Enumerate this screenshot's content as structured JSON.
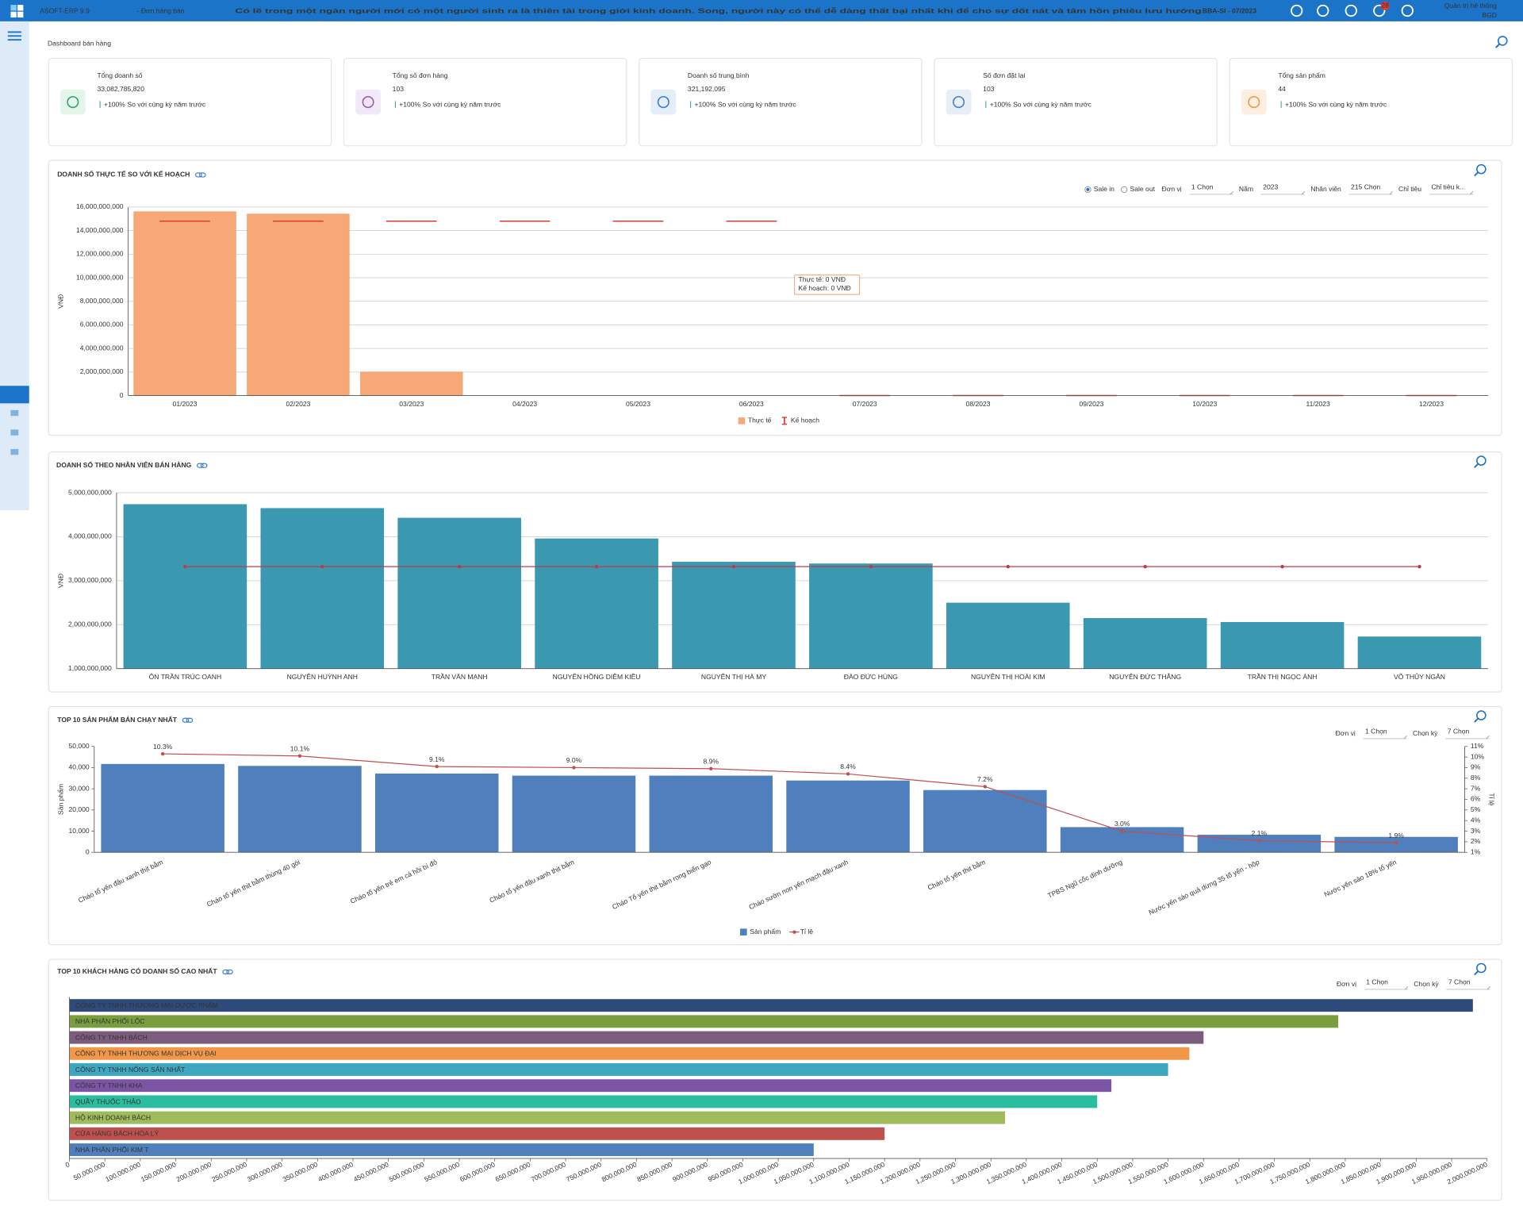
{
  "header": {
    "app": "ASOFT-ERP 9.9",
    "module": "- Đơn hàng bán",
    "marquee": "Có lẽ trong một ngàn người mới có một người sinh ra là thiên tài trong giới kinh doanh. Song, người này có thể dễ dàng thất bại nhất khi để cho sự dốt nát và tâm hồn phiêu lưu hướng",
    "period": "BBA-SI - 07/2023",
    "notifications": "28",
    "user": "Quản trị hệ thống",
    "role": "BGD"
  },
  "page_title": "Dashboard bán hàng",
  "kpis": [
    {
      "label": "Tổng doanh số",
      "value": "33,082,785,820",
      "change": "+100%",
      "note": "So với cùng kỳ năm trước"
    },
    {
      "label": "Tổng số đơn hàng",
      "value": "103",
      "change": "+100%",
      "note": "So với cùng kỳ năm trước"
    },
    {
      "label": "Doanh số trung bình",
      "value": "321,192,095",
      "change": "+100%",
      "note": "So với cùng kỳ năm trước"
    },
    {
      "label": "Số đơn đặt lại",
      "value": "103",
      "change": "+100%",
      "note": "So với cùng kỳ năm trước"
    },
    {
      "label": "Tổng sản phẩm",
      "value": "44",
      "change": "+100%",
      "note": "So với cùng kỳ năm trước"
    }
  ],
  "chart_data": [
    {
      "type": "bar",
      "title": "DOANH SỐ THỰC TẾ SO VỚI KẾ HOẠCH",
      "options": [
        {
          "label": "Sale in",
          "checked": true
        },
        {
          "label": "Sale out",
          "checked": false
        }
      ],
      "filters": [
        {
          "label": "Đơn vị",
          "value": "1 Chọn"
        },
        {
          "label": "Năm",
          "value": "2023"
        },
        {
          "label": "Nhân viên",
          "value": "215 Chọn"
        },
        {
          "label": "Chỉ tiêu",
          "value": "Chỉ tiêu k..."
        }
      ],
      "ylabel": "VNĐ",
      "categories": [
        "01/2023",
        "02/2023",
        "03/2023",
        "04/2023",
        "05/2023",
        "06/2023",
        "07/2023",
        "08/2023",
        "09/2023",
        "10/2023",
        "11/2023",
        "12/2023"
      ],
      "series": [
        {
          "name": "Thực tế",
          "kind": "bar",
          "color": "#f6a877",
          "values": [
            15600000000,
            15400000000,
            2000000000,
            0,
            0,
            0,
            0,
            0,
            0,
            0,
            0,
            0
          ]
        },
        {
          "name": "Kế hoạch",
          "kind": "dash",
          "color": "#e53935",
          "values": [
            14800000000,
            14800000000,
            14800000000,
            14800000000,
            14800000000,
            14800000000,
            0,
            0,
            0,
            0,
            0,
            0
          ]
        }
      ],
      "ylim": [
        0,
        16000000000
      ],
      "yticks": [
        0,
        {
          "value": 2000000000,
          "label": "2,000,000,000"
        },
        {
          "value": 4000000000,
          "label": "4,000,000,000"
        },
        {
          "value": 6000000000,
          "label": "6,000,000,000"
        },
        {
          "value": 8000000000,
          "label": "8,000,000,000"
        },
        {
          "value": 10000000000,
          "label": "10,000,000,000"
        },
        {
          "value": 12000000000,
          "label": "12,000,000,000"
        },
        {
          "value": 14000000000,
          "label": "14,000,000,000"
        },
        {
          "value": 16000000000,
          "label": "16,000,000,000"
        }
      ],
      "grid": true,
      "tooltip": [
        "Thực tế: 0 VNĐ",
        "Kế hoạch: 0 VNĐ"
      ]
    },
    {
      "type": "bar",
      "title": "DOANH SỐ THEO NHÂN VIÊN BÁN HÀNG",
      "ylabel": "VNĐ",
      "categories": [
        "ÔN TRẦN TRÚC OANH",
        "NGUYỄN HUỲNH ANH",
        "TRẦN VĂN MẠNH",
        "NGUYỄN HỒNG DIỄM KIỀU",
        "NGUYỄN THỊ HÀ MY",
        "ĐÀO ĐỨC HÙNG",
        "NGUYỄN THỊ HOÀI KIM",
        "NGUYỄN ĐỨC THẮNG",
        "TRẦN THỊ NGỌC ÁNH",
        "VÕ THỦY NGÂN"
      ],
      "series": [
        {
          "kind": "bar",
          "color": "#3a98b1",
          "values": [
            4740000000,
            4650000000,
            4430000000,
            3960000000,
            3430000000,
            3390000000,
            2500000000,
            2150000000,
            2060000000,
            1730000000
          ]
        },
        {
          "kind": "line",
          "color": "#c0394b",
          "values": [
            3320000000,
            3320000000,
            3320000000,
            3320000000,
            3320000000,
            3320000000,
            3320000000,
            3320000000,
            3320000000,
            3320000000
          ]
        }
      ],
      "ylim": [
        1000000000,
        5000000000
      ],
      "yticks": [
        {
          "value": 1000000000,
          "label": "1,000,000,000"
        },
        {
          "value": 2000000000,
          "label": "2,000,000,000"
        },
        {
          "value": 3000000000,
          "label": "3,000,000,000"
        },
        {
          "value": 4000000000,
          "label": "4,000,000,000"
        },
        {
          "value": 5000000000,
          "label": "5,000,000,000"
        }
      ],
      "grid": true
    },
    {
      "type": "bar",
      "title": "TOP 10 SẢN PHẨM BÁN CHẠY NHẤT",
      "filters": [
        {
          "label": "Đơn vị",
          "value": "1 Chọn"
        },
        {
          "label": "Chọn kỳ",
          "value": "7 Chọn"
        }
      ],
      "ylabel": "Sản phẩm",
      "y2label": "Tỉ lệ",
      "categories": [
        "Cháo tổ yến đậu xanh thịt bằm",
        "Cháo tổ yến thịt bằm thùng 40 gói",
        "Cháo tổ yến trẻ em cá hồi bí đỏ",
        "Cháo tổ yến đậu xanh thịt bằm",
        "Cháo Tổ yến thịt bằm rong biển gạo",
        "Cháo sườn non yến mạch đậu xanh",
        "Cháo tổ yến thịt bằm",
        "TPBS Ngũ cốc dinh dưỡng",
        "Nước yến sào quả dừng 35 tổ yến - hộp",
        "Nước yến sào 18% tổ yến"
      ],
      "series": [
        {
          "name": "Sản phẩm",
          "kind": "bar",
          "color": "#4f7fbd",
          "values": [
            41700,
            40800,
            37200,
            36200,
            36200,
            33900,
            29400,
            11900,
            8300,
            7300
          ]
        },
        {
          "name": "Tỉ lệ",
          "kind": "line",
          "axis": "y2",
          "color": "#c0504d",
          "values": [
            10.3,
            10.1,
            9.1,
            9.0,
            8.9,
            8.4,
            7.2,
            3.0,
            2.1,
            1.9
          ],
          "value_labels": [
            "10.3%",
            "10.1%",
            "9.1%",
            "9.0%",
            "8.9%",
            "8.4%",
            "7.2%",
            "3.0%",
            "2.1%",
            "1.9%"
          ]
        }
      ],
      "ylim": [
        0,
        50000
      ],
      "yticks": [
        0,
        {
          "value": 10000,
          "label": "10,000"
        },
        {
          "value": 20000,
          "label": "20,000"
        },
        {
          "value": 30000,
          "label": "30,000"
        },
        {
          "value": 40000,
          "label": "40,000"
        },
        {
          "value": 50000,
          "label": "50,000"
        }
      ],
      "y2lim": [
        1,
        11
      ],
      "y2ticks": [
        {
          "value": 1,
          "label": "1%"
        },
        {
          "value": 2,
          "label": "2%"
        },
        {
          "value": 3,
          "label": "3%"
        },
        {
          "value": 4,
          "label": "4%"
        },
        {
          "value": 5,
          "label": "5%"
        },
        {
          "value": 6,
          "label": "6%"
        },
        {
          "value": 7,
          "label": "7%"
        },
        {
          "value": 8,
          "label": "8%"
        },
        {
          "value": 9,
          "label": "9%"
        },
        {
          "value": 10,
          "label": "10%"
        },
        {
          "value": 11,
          "label": "11%"
        }
      ],
      "grid": false
    },
    {
      "type": "hbar",
      "title": "TOP 10 KHÁCH HÀNG CÓ DOANH SỐ CAO NHẤT",
      "filters": [
        {
          "label": "Đơn vị",
          "value": "1 Chọn"
        },
        {
          "label": "Chọn kỳ",
          "value": "7 Chọn"
        }
      ],
      "categories": [
        "CÔNG TY TNHH THƯƠNG MẠI DƯỢC PHẨM",
        "NHÀ PHÂN PHỐI LỘC",
        "CÔNG TY TNHH BÁCH",
        "CÔNG TY TNHH THƯƠNG MẠI DỊCH VỤ ĐẠI",
        "CÔNG TY TNHH NÔNG SẢN NHẤT",
        "CÔNG TY TNHH KHA",
        "QUẦY THUỐC THẢO",
        "HỘ KINH DOANH BÁCH",
        "CỬA HÀNG BÁCH HÓA LÝ",
        "NHÀ PHÂN PHỐI KIM T"
      ],
      "colors": [
        "#2e4a7a",
        "#7a9e3e",
        "#7b5c7d",
        "#f0974a",
        "#3fa7c2",
        "#7b55a3",
        "#2bbda0",
        "#a0bb5c",
        "#c0504d",
        "#4f80bd"
      ],
      "values": [
        1980000000,
        1790000000,
        1600000000,
        1580000000,
        1550000000,
        1470000000,
        1450000000,
        1320000000,
        1150000000,
        1050000000
      ],
      "xlim": [
        0,
        2000000000
      ],
      "xticks": [
        0,
        {
          "value": 50000000,
          "label": "50,000,000"
        },
        {
          "value": 100000000,
          "label": "100,000,000"
        },
        {
          "value": 150000000,
          "label": "150,000,000"
        },
        {
          "value": 200000000,
          "label": "200,000,000"
        },
        {
          "value": 250000000,
          "label": "250,000,000"
        },
        {
          "value": 300000000,
          "label": "300,000,000"
        },
        {
          "value": 350000000,
          "label": "350,000,000"
        },
        {
          "value": 400000000,
          "label": "400,000,000"
        },
        {
          "value": 450000000,
          "label": "450,000,000"
        },
        {
          "value": 500000000,
          "label": "500,000,000"
        },
        {
          "value": 550000000,
          "label": "550,000,000"
        },
        {
          "value": 600000000,
          "label": "600,000,000"
        },
        {
          "value": 650000000,
          "label": "650,000,000"
        },
        {
          "value": 700000000,
          "label": "700,000,000"
        },
        {
          "value": 750000000,
          "label": "750,000,000"
        },
        {
          "value": 800000000,
          "label": "800,000,000"
        },
        {
          "value": 850000000,
          "label": "850,000,000"
        },
        {
          "value": 900000000,
          "label": "900,000,000"
        },
        {
          "value": 950000000,
          "label": "950,000,000"
        },
        {
          "value": 1000000000,
          "label": "1,000,000,000"
        },
        {
          "value": 1050000000,
          "label": "1,050,000,000"
        },
        {
          "value": 1100000000,
          "label": "1,100,000,000"
        },
        {
          "value": 1150000000,
          "label": "1,150,000,000"
        },
        {
          "value": 1200000000,
          "label": "1,200,000,000"
        },
        {
          "value": 1250000000,
          "label": "1,250,000,000"
        },
        {
          "value": 1300000000,
          "label": "1,300,000,000"
        },
        {
          "value": 1350000000,
          "label": "1,350,000,000"
        },
        {
          "value": 1400000000,
          "label": "1,400,000,000"
        },
        {
          "value": 1450000000,
          "label": "1,450,000,000"
        },
        {
          "value": 1500000000,
          "label": "1,500,000,000"
        },
        {
          "value": 1550000000,
          "label": "1,550,000,000"
        },
        {
          "value": 1600000000,
          "label": "1,600,000,000"
        },
        {
          "value": 1650000000,
          "label": "1,650,000,000"
        },
        {
          "value": 1700000000,
          "label": "1,700,000,000"
        },
        {
          "value": 1750000000,
          "label": "1,750,000,000"
        },
        {
          "value": 1800000000,
          "label": "1,800,000,000"
        },
        {
          "value": 1850000000,
          "label": "1,850,000,000"
        },
        {
          "value": 1900000000,
          "label": "1,900,000,000"
        },
        {
          "value": 1950000000,
          "label": "1,950,000,000"
        },
        {
          "value": 2000000000,
          "label": "2,000,000,000"
        }
      ]
    }
  ]
}
